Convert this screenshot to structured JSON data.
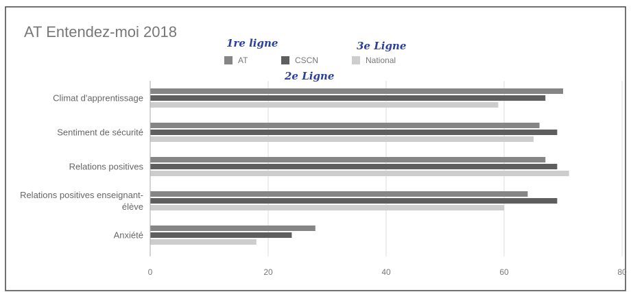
{
  "chart_data": {
    "type": "bar",
    "orientation": "horizontal",
    "title": "AT  Entendez-moi 2018",
    "annotations": [
      "1re ligne",
      "2e Ligne",
      "3e Ligne"
    ],
    "categories": [
      "Climat d'apprentissage",
      "Sentiment de sécurité",
      "Relations positives",
      "Relations positives enseignant-élève",
      "Anxiété"
    ],
    "series": [
      {
        "name": "AT",
        "color": "#858585",
        "values": [
          70,
          66,
          67,
          64,
          28
        ]
      },
      {
        "name": "CSCN",
        "color": "#5e5e5e",
        "values": [
          67,
          69,
          69,
          69,
          24
        ]
      },
      {
        "name": "National",
        "color": "#cdcdcd",
        "values": [
          59,
          65,
          71,
          60,
          18
        ]
      }
    ],
    "xlim": [
      0,
      80
    ],
    "xticks": [
      0,
      20,
      40,
      60,
      80
    ],
    "grid": true,
    "legend": "top"
  }
}
